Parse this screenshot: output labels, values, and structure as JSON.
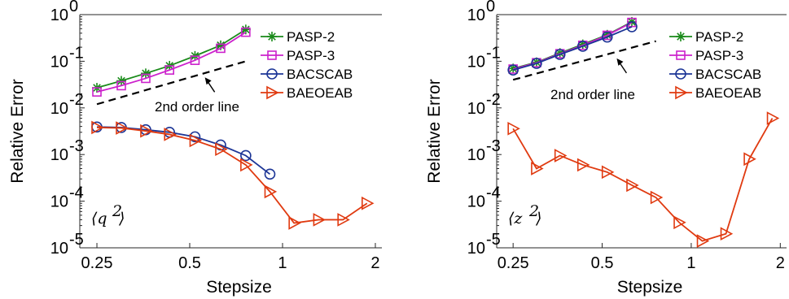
{
  "chart_data": [
    {
      "type": "line",
      "xscale": "log",
      "yscale": "log",
      "xlabel": "Stepsize",
      "ylabel": "Relative Error",
      "xlim": [
        0.22,
        2.1
      ],
      "ylim": [
        1e-05,
        1
      ],
      "xticks": [
        0.25,
        0.5,
        1,
        2
      ],
      "xticklabels": [
        "0.25",
        "0.5",
        "1",
        "2"
      ],
      "yticks": [
        1e-05,
        0.0001,
        0.001,
        0.01,
        0.1,
        1
      ],
      "yticklabels": [
        {
          "b": "10",
          "e": "-5"
        },
        {
          "b": "10",
          "e": "-4"
        },
        {
          "b": "10",
          "e": "-3"
        },
        {
          "b": "10",
          "e": "-2"
        },
        {
          "b": "10",
          "e": "-1"
        },
        {
          "b": "10",
          "e": "0"
        }
      ],
      "panel_label": {
        "base": "q",
        "exp": "2"
      },
      "legend": "top-right",
      "series": [
        {
          "name": "PASP-2",
          "color": "#1a8a1a",
          "marker": "star",
          "x": [
            0.25,
            0.3,
            0.36,
            0.43,
            0.52,
            0.63,
            0.76
          ],
          "y": [
            0.027,
            0.038,
            0.055,
            0.08,
            0.13,
            0.22,
            0.48
          ]
        },
        {
          "name": "PASP-3",
          "color": "#cc22cc",
          "marker": "square",
          "x": [
            0.25,
            0.3,
            0.36,
            0.43,
            0.52,
            0.63,
            0.76
          ],
          "y": [
            0.022,
            0.03,
            0.043,
            0.065,
            0.105,
            0.19,
            0.42
          ]
        },
        {
          "name": "BACSCAB",
          "color": "#1c3596",
          "marker": "circle",
          "x": [
            0.25,
            0.3,
            0.36,
            0.43,
            0.52,
            0.63,
            0.76,
            0.91
          ],
          "y": [
            0.0039,
            0.0038,
            0.0034,
            0.003,
            0.0024,
            0.0016,
            0.00095,
            0.00038
          ]
        },
        {
          "name": "BAEOEAB",
          "color": "#e03a10",
          "marker": "triangle-right",
          "x": [
            0.25,
            0.3,
            0.36,
            0.43,
            0.52,
            0.63,
            0.76,
            0.91,
            1.09,
            1.31,
            1.57,
            1.88
          ],
          "y": [
            0.0038,
            0.0037,
            0.0032,
            0.0027,
            0.002,
            0.0013,
            0.0006,
            0.00016,
            3.4e-05,
            4e-05,
            4e-05,
            9e-05
          ]
        }
      ],
      "reference_line": {
        "label": "2nd order line",
        "x": [
          0.25,
          0.76
        ],
        "y": [
          0.012,
          0.1
        ]
      },
      "annotation": {
        "text": "2nd order line",
        "arrow_to": [
          0.56,
          0.045
        ],
        "text_at": [
          0.6,
          0.022
        ]
      }
    },
    {
      "type": "line",
      "xscale": "log",
      "yscale": "log",
      "xlabel": "Stepsize",
      "ylabel": "Relative Error",
      "xlim": [
        0.22,
        2.1
      ],
      "ylim": [
        1e-05,
        1
      ],
      "xticks": [
        0.25,
        0.5,
        1,
        2
      ],
      "xticklabels": [
        "0.25",
        "0.5",
        "1",
        "2"
      ],
      "yticks": [
        1e-05,
        0.0001,
        0.001,
        0.01,
        0.1,
        1
      ],
      "yticklabels": [
        {
          "b": "10",
          "e": "-5"
        },
        {
          "b": "10",
          "e": "-4"
        },
        {
          "b": "10",
          "e": "-3"
        },
        {
          "b": "10",
          "e": "-2"
        },
        {
          "b": "10",
          "e": "-1"
        },
        {
          "b": "10",
          "e": "0"
        }
      ],
      "panel_label": {
        "base": "z",
        "exp": "2"
      },
      "legend": "top-right",
      "series": [
        {
          "name": "PASP-2",
          "color": "#1a8a1a",
          "marker": "star",
          "x": [
            0.25,
            0.3,
            0.36,
            0.43,
            0.52,
            0.63
          ],
          "y": [
            0.07,
            0.095,
            0.15,
            0.23,
            0.37,
            0.7
          ]
        },
        {
          "name": "PASP-3",
          "color": "#cc22cc",
          "marker": "square",
          "x": [
            0.25,
            0.3,
            0.36,
            0.43,
            0.52,
            0.63
          ],
          "y": [
            0.068,
            0.093,
            0.145,
            0.22,
            0.36,
            0.68
          ]
        },
        {
          "name": "BACSCAB",
          "color": "#1c3596",
          "marker": "circle",
          "x": [
            0.25,
            0.3,
            0.36,
            0.43,
            0.52,
            0.63
          ],
          "y": [
            0.065,
            0.09,
            0.14,
            0.21,
            0.33,
            0.55
          ]
        },
        {
          "name": "BAEOEAB",
          "color": "#e03a10",
          "marker": "triangle-right",
          "x": [
            0.25,
            0.3,
            0.36,
            0.43,
            0.52,
            0.63,
            0.76,
            0.91,
            1.09,
            1.31,
            1.57,
            1.88
          ],
          "y": [
            0.0036,
            0.0005,
            0.00095,
            0.0006,
            0.00042,
            0.00022,
            0.00012,
            3.5e-05,
            1.4e-05,
            2e-05,
            0.0008,
            0.006
          ]
        }
      ],
      "reference_line": {
        "label": "2nd order line",
        "x": [
          0.25,
          0.76
        ],
        "y": [
          0.04,
          0.27
        ]
      },
      "annotation": {
        "text": "2nd order line",
        "arrow_to": [
          0.56,
          0.115
        ],
        "text_at": [
          0.6,
          0.055
        ]
      }
    }
  ]
}
